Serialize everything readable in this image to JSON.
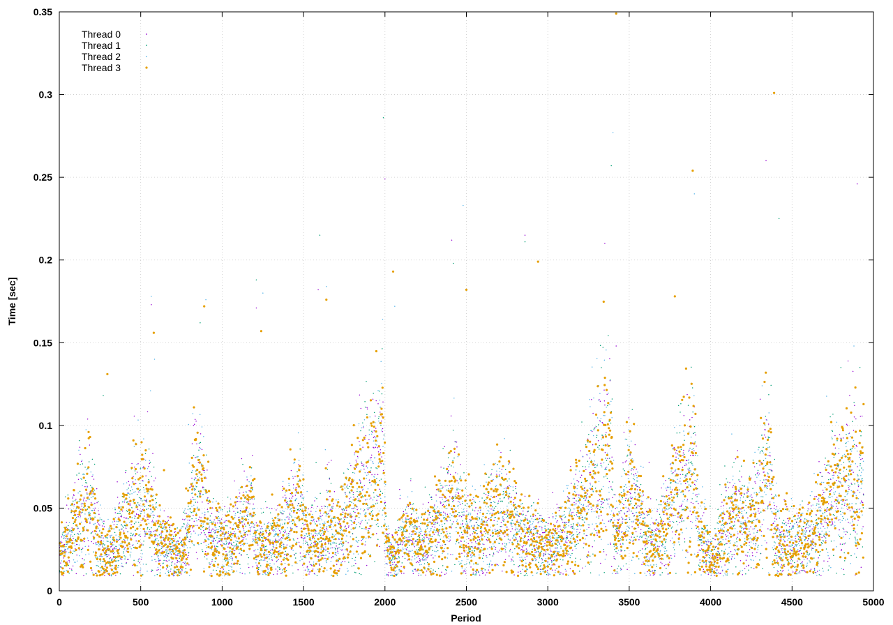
{
  "chart_data": {
    "type": "scatter",
    "title": "",
    "xlabel": "Period",
    "ylabel": "Time [sec]",
    "xlim": [
      0,
      5000
    ],
    "ylim": [
      0,
      0.35
    ],
    "x_ticks": [
      0,
      500,
      1000,
      1500,
      2000,
      2500,
      3000,
      3500,
      4000,
      4500,
      5000
    ],
    "x_tick_labels": [
      "0",
      "500",
      "1000",
      "1500",
      "2000",
      "2500",
      "3000",
      "3500",
      "4000",
      "4500",
      "5000"
    ],
    "y_ticks": [
      0,
      0.05,
      0.1,
      0.15,
      0.2,
      0.25,
      0.3,
      0.35
    ],
    "y_tick_labels": [
      "0",
      "0.05",
      "0.1",
      "0.15",
      "0.2",
      "0.25",
      "0.3",
      "0.35"
    ],
    "grid": true,
    "legend_position": "top-left",
    "x_count": 4940,
    "trend_points": [
      [
        0,
        0.02
      ],
      [
        60,
        0.03
      ],
      [
        120,
        0.045
      ],
      [
        180,
        0.055
      ],
      [
        230,
        0.03
      ],
      [
        300,
        0.022
      ],
      [
        350,
        0.03
      ],
      [
        420,
        0.042
      ],
      [
        500,
        0.055
      ],
      [
        560,
        0.05
      ],
      [
        600,
        0.025
      ],
      [
        650,
        0.03
      ],
      [
        720,
        0.02
      ],
      [
        780,
        0.03
      ],
      [
        830,
        0.062
      ],
      [
        880,
        0.055
      ],
      [
        930,
        0.03
      ],
      [
        1000,
        0.03
      ],
      [
        1060,
        0.03
      ],
      [
        1120,
        0.04
      ],
      [
        1170,
        0.048
      ],
      [
        1220,
        0.025
      ],
      [
        1280,
        0.028
      ],
      [
        1350,
        0.03
      ],
      [
        1420,
        0.042
      ],
      [
        1470,
        0.055
      ],
      [
        1520,
        0.03
      ],
      [
        1600,
        0.03
      ],
      [
        1650,
        0.04
      ],
      [
        1700,
        0.03
      ],
      [
        1750,
        0.04
      ],
      [
        1850,
        0.06
      ],
      [
        1930,
        0.07
      ],
      [
        1990,
        0.085
      ],
      [
        2010,
        0.025
      ],
      [
        2060,
        0.02
      ],
      [
        2100,
        0.03
      ],
      [
        2160,
        0.035
      ],
      [
        2220,
        0.025
      ],
      [
        2300,
        0.035
      ],
      [
        2380,
        0.05
      ],
      [
        2430,
        0.06
      ],
      [
        2470,
        0.04
      ],
      [
        2540,
        0.03
      ],
      [
        2620,
        0.04
      ],
      [
        2700,
        0.05
      ],
      [
        2760,
        0.045
      ],
      [
        2820,
        0.035
      ],
      [
        2900,
        0.03
      ],
      [
        2960,
        0.028
      ],
      [
        3000,
        0.025
      ],
      [
        3080,
        0.03
      ],
      [
        3140,
        0.04
      ],
      [
        3200,
        0.05
      ],
      [
        3260,
        0.06
      ],
      [
        3320,
        0.07
      ],
      [
        3380,
        0.09
      ],
      [
        3410,
        0.03
      ],
      [
        3450,
        0.04
      ],
      [
        3500,
        0.06
      ],
      [
        3550,
        0.05
      ],
      [
        3600,
        0.03
      ],
      [
        3680,
        0.03
      ],
      [
        3740,
        0.045
      ],
      [
        3800,
        0.06
      ],
      [
        3860,
        0.07
      ],
      [
        3900,
        0.075
      ],
      [
        3930,
        0.035
      ],
      [
        3980,
        0.025
      ],
      [
        4010,
        0.018
      ],
      [
        4080,
        0.035
      ],
      [
        4150,
        0.045
      ],
      [
        4220,
        0.04
      ],
      [
        4280,
        0.045
      ],
      [
        4330,
        0.075
      ],
      [
        4370,
        0.06
      ],
      [
        4410,
        0.03
      ],
      [
        4480,
        0.03
      ],
      [
        4540,
        0.03
      ],
      [
        4600,
        0.03
      ],
      [
        4660,
        0.04
      ],
      [
        4720,
        0.05
      ],
      [
        4800,
        0.06
      ],
      [
        4860,
        0.065
      ],
      [
        4900,
        0.06
      ],
      [
        4940,
        0.06
      ]
    ],
    "series": [
      {
        "name": "Thread 0",
        "color": "#9400d3",
        "marker": "dot",
        "outliers": [
          [
            565,
            0.173
          ],
          [
            1210,
            0.171
          ],
          [
            1590,
            0.182
          ],
          [
            2000,
            0.249
          ],
          [
            2410,
            0.212
          ],
          [
            2860,
            0.215
          ],
          [
            3350,
            0.21
          ],
          [
            3420,
            0.148
          ],
          [
            4340,
            0.26
          ],
          [
            4900,
            0.246
          ]
        ]
      },
      {
        "name": "Thread 1",
        "color": "#009e73",
        "marker": "dot",
        "outliers": [
          [
            270,
            0.118
          ],
          [
            865,
            0.162
          ],
          [
            1210,
            0.188
          ],
          [
            1600,
            0.215
          ],
          [
            1990,
            0.286
          ],
          [
            2420,
            0.198
          ],
          [
            2860,
            0.211
          ],
          [
            3390,
            0.257
          ],
          [
            4420,
            0.225
          ],
          [
            4800,
            0.135
          ]
        ]
      },
      {
        "name": "Thread 2",
        "color": "#56b4e9",
        "marker": "dot",
        "outliers": [
          [
            565,
            0.178
          ],
          [
            585,
            0.14
          ],
          [
            900,
            0.176
          ],
          [
            1250,
            0.18
          ],
          [
            1640,
            0.184
          ],
          [
            2060,
            0.172
          ],
          [
            2480,
            0.233
          ],
          [
            3400,
            0.277
          ],
          [
            3900,
            0.24
          ],
          [
            4880,
            0.148
          ]
        ]
      },
      {
        "name": "Thread 3",
        "color": "#e69f00",
        "marker": "circle",
        "outliers": [
          [
            180,
            0.096
          ],
          [
            295,
            0.131
          ],
          [
            580,
            0.156
          ],
          [
            890,
            0.172
          ],
          [
            1240,
            0.157
          ],
          [
            1640,
            0.176
          ],
          [
            2050,
            0.193
          ],
          [
            2500,
            0.182
          ],
          [
            2940,
            0.199
          ],
          [
            3420,
            0.349
          ],
          [
            3780,
            0.178
          ],
          [
            3890,
            0.254
          ],
          [
            4390,
            0.301
          ]
        ]
      }
    ]
  }
}
